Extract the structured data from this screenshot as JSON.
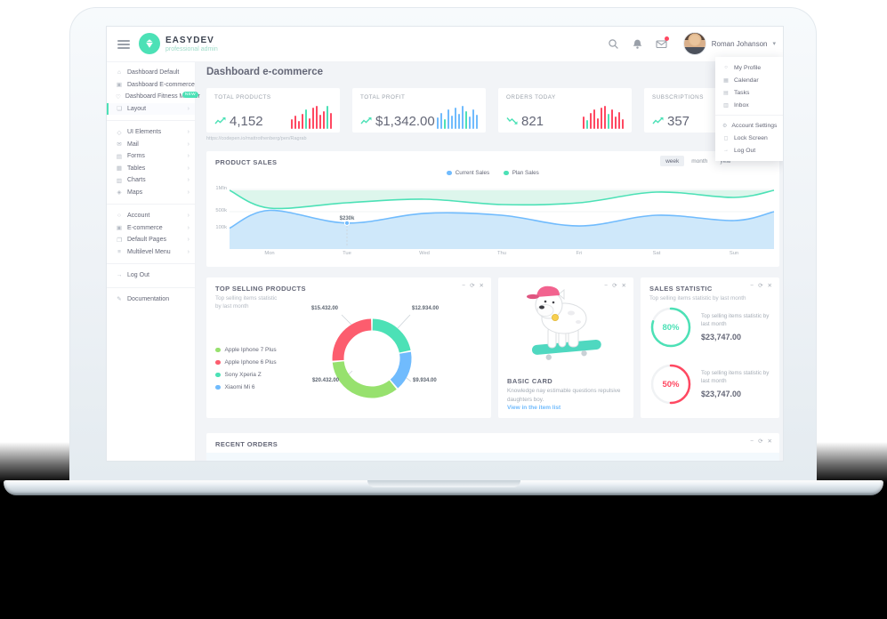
{
  "logo": {
    "title": "EASYDEV",
    "subtitle": "professional admin"
  },
  "topbar": {
    "user_name": "Roman Johanson"
  },
  "user_menu": {
    "sections": [
      {
        "items": [
          {
            "label": "My Profile",
            "icon": "user-icon",
            "glyph": "○"
          },
          {
            "label": "Calendar",
            "icon": "calendar-icon",
            "glyph": "▦"
          },
          {
            "label": "Tasks",
            "icon": "tasks-icon",
            "glyph": "▤"
          },
          {
            "label": "Inbox",
            "icon": "inbox-icon",
            "glyph": "▥"
          }
        ]
      },
      {
        "items": [
          {
            "label": "Account Settings",
            "icon": "settings-icon",
            "glyph": "⚙"
          },
          {
            "label": "Lock Screen",
            "icon": "lock-icon",
            "glyph": "◻"
          },
          {
            "label": "Log Out",
            "icon": "logout-icon",
            "glyph": "→"
          }
        ]
      }
    ]
  },
  "sidebar": {
    "groups": [
      {
        "items": [
          {
            "label": "Dashboard Default",
            "icon": "home-icon",
            "glyph": "⌂"
          },
          {
            "label": "Dashboard E-commerce",
            "icon": "store-icon",
            "glyph": "▣"
          },
          {
            "label": "Dashboard Fitness Monitor",
            "icon": "heart-icon",
            "glyph": "♡",
            "badge": "NEW"
          },
          {
            "label": "Layout",
            "icon": "layers-icon",
            "glyph": "❏",
            "active": true,
            "chevron": true
          }
        ]
      },
      {
        "items": [
          {
            "label": "UI Elements",
            "icon": "diamond-icon",
            "glyph": "◇",
            "chevron": true
          },
          {
            "label": "Mail",
            "icon": "envelope-icon",
            "glyph": "✉",
            "chevron": true
          },
          {
            "label": "Forms",
            "icon": "form-icon",
            "glyph": "▤",
            "chevron": true
          },
          {
            "label": "Tables",
            "icon": "table-icon",
            "glyph": "▦",
            "chevron": true
          },
          {
            "label": "Charts",
            "icon": "chart-icon",
            "glyph": "▥",
            "chevron": true
          },
          {
            "label": "Maps",
            "icon": "map-icon",
            "glyph": "◈",
            "chevron": true
          }
        ]
      },
      {
        "items": [
          {
            "label": "Account",
            "icon": "account-icon",
            "glyph": "○",
            "chevron": true
          },
          {
            "label": "E-commerce",
            "icon": "cart-icon",
            "glyph": "▣",
            "chevron": true
          },
          {
            "label": "Default Pages",
            "icon": "pages-icon",
            "glyph": "❐",
            "chevron": true
          },
          {
            "label": "Multilevel Menu",
            "icon": "menu-icon",
            "glyph": "≡",
            "chevron": true
          }
        ]
      },
      {
        "items": [
          {
            "label": "Log Out",
            "icon": "logout-icon",
            "glyph": "→"
          }
        ]
      },
      {
        "items": [
          {
            "label": "Documentation",
            "icon": "doc-icon",
            "glyph": "✎"
          }
        ]
      }
    ]
  },
  "page": {
    "title": "Dashboard e-commerce",
    "link_preview": "https://codepen.io/mattrothenberg/pen/Ragrab"
  },
  "panel_controls": {
    "collapse": "−",
    "refresh": "⟳",
    "close": "✕"
  },
  "stats": [
    {
      "label": "TOTAL PRODUCTS",
      "value": "4,152",
      "trend": "up",
      "spark": {
        "color": "#ff4861",
        "highlight_color": "#4ce1b6",
        "highlight": [
          4,
          10
        ],
        "heights": [
          11,
          15,
          9,
          17,
          22,
          12,
          24,
          26,
          16,
          20,
          26,
          18
        ]
      }
    },
    {
      "label": "TOTAL PROFIT",
      "value": "$1,342.00",
      "trend": "up",
      "spark": {
        "color": "#70bbfd",
        "highlight_color": "#4ce1b6",
        "highlight": [
          2,
          8
        ],
        "heights": [
          13,
          18,
          11,
          22,
          15,
          24,
          17,
          26,
          20,
          14,
          22,
          16
        ]
      }
    },
    {
      "label": "ORDERS TODAY",
      "value": "821",
      "trend": "down",
      "spark": {
        "color": "#ff4861",
        "highlight_color": "#4ce1b6",
        "highlight": [
          1,
          7
        ],
        "heights": [
          14,
          10,
          18,
          22,
          12,
          24,
          26,
          17,
          22,
          14,
          19,
          11
        ]
      }
    },
    {
      "label": "SUBSCRIPTIONS",
      "value": "357",
      "trend": "up",
      "spark": {
        "color": "#ff4861",
        "highlight_color": "#4ce1b6",
        "highlight": [
          5
        ],
        "heights": [
          12,
          16,
          10,
          18,
          24,
          14,
          22,
          26,
          18,
          20,
          14,
          18
        ]
      }
    }
  ],
  "product_sales": {
    "title": "PRODUCT SALES",
    "range_buttons": [
      "week",
      "month",
      "year"
    ],
    "active_range": "week",
    "legend": [
      {
        "label": "Current Sales",
        "color": "#70bbfd"
      },
      {
        "label": "Plan Sales",
        "color": "#4ce1b6"
      }
    ],
    "chart_data": {
      "type": "area",
      "x": [
        "",
        "Mon",
        "Tue",
        "Wed",
        "Thu",
        "Fri",
        "Sat",
        "Sun",
        ""
      ],
      "y_ticks": [
        "1Mln",
        "500k",
        "100k"
      ],
      "series": [
        {
          "name": "Plan Sales",
          "color": "#4ce1b6",
          "fill": "#ddf6ec",
          "values_k": [
            980,
            580,
            700,
            780,
            660,
            700,
            940,
            820,
            980
          ]
        },
        {
          "name": "Current Sales",
          "color": "#70bbfd",
          "fill": "#cfe8fa",
          "values_k": [
            110,
            530,
            230,
            460,
            415,
            160,
            415,
            290,
            500
          ]
        }
      ],
      "tooltip": {
        "label": "$230k",
        "x_index": 2,
        "series": "Current Sales"
      }
    }
  },
  "top_selling": {
    "title": "TOP SELLING PRODUCTS",
    "subtitle": "Top selling items statistic by last month",
    "chart_data": {
      "type": "pie",
      "slices": [
        {
          "name": "Apple Iphone 7 Plus",
          "color": "#97e16e",
          "value": 20432,
          "label": "$20.432.00"
        },
        {
          "name": "Apple Iphone 6 Plus",
          "color": "#fc5d6e",
          "value": 15432,
          "label": "$15.432.00"
        },
        {
          "name": "Sony Xperia Z",
          "color": "#4ce1b6",
          "value": 12934,
          "label": "$12.934.00"
        },
        {
          "name": "Xiaomi Mi 6",
          "color": "#70bbfd",
          "value": 9934,
          "label": "$9.934.00"
        }
      ],
      "draw_order": [
        2,
        3,
        0,
        1
      ]
    }
  },
  "basic_card": {
    "title": "BASIC CARD",
    "text": "Knowledge nay estimable questions repulsive daughters boy.",
    "link": "View in the item list",
    "image": "bulldog-on-skateboard"
  },
  "sales_statistic": {
    "title": "SALES STATISTIC",
    "subtitle": "Top selling items statistic by last month",
    "rows": [
      {
        "percent": 80,
        "percent_label": "80%",
        "color": "#4ce1b6",
        "text": "Top selling items statistic by last month",
        "amount": "$23,747.00"
      },
      {
        "percent": 50,
        "percent_label": "50%",
        "color": "#ff4861",
        "text": "Top selling items statistic by last month",
        "amount": "$23,747.00"
      }
    ]
  },
  "recent_orders": {
    "title": "RECENT ORDERS"
  },
  "colors": {
    "accent": "#4ce1b6",
    "blue": "#70bbfd",
    "red": "#ff4861",
    "green": "#97e16e"
  }
}
